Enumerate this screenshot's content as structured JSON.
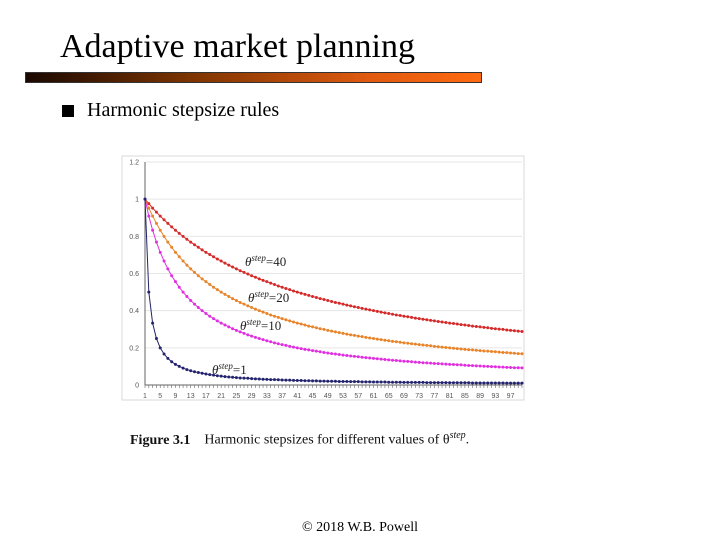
{
  "slide": {
    "title": "Adaptive market planning",
    "bullet": "Harmonic stepsize rules",
    "caption_label": "Figure 3.1",
    "caption_text": "Harmonic stepsizes for different values of θ",
    "caption_sup": "step",
    "caption_end": ".",
    "footer": "© 2018 W.B. Powell",
    "title_bar_colors": [
      "#1a0800",
      "#ff6a10"
    ]
  },
  "chart_data": {
    "type": "line",
    "title": "",
    "xlabel": "",
    "ylabel": "",
    "ylim": [
      0,
      1.2
    ],
    "yticks": [
      "0",
      "0.2",
      "0.4",
      "0.6",
      "0.8",
      "1",
      "1.2"
    ],
    "xlim": [
      1,
      100
    ],
    "xticks": [
      "1",
      "5",
      "9",
      "13",
      "17",
      "21",
      "25",
      "29",
      "33",
      "37",
      "41",
      "45",
      "49",
      "53",
      "57",
      "61",
      "65",
      "69",
      "73",
      "77",
      "81",
      "85",
      "89",
      "93",
      "97"
    ],
    "grid": "horizontal",
    "legend": "none (inline labels)",
    "x": [
      1,
      2,
      3,
      4,
      5,
      6,
      7,
      8,
      9,
      10,
      11,
      12,
      13,
      14,
      15,
      16,
      17,
      18,
      19,
      20,
      21,
      22,
      23,
      24,
      25,
      26,
      27,
      28,
      29,
      30,
      31,
      32,
      33,
      34,
      35,
      36,
      37,
      38,
      39,
      40,
      41,
      42,
      43,
      44,
      45,
      46,
      47,
      48,
      49,
      50,
      51,
      52,
      53,
      54,
      55,
      56,
      57,
      58,
      59,
      60,
      61,
      62,
      63,
      64,
      65,
      66,
      67,
      68,
      69,
      70,
      71,
      72,
      73,
      74,
      75,
      76,
      77,
      78,
      79,
      80,
      81,
      82,
      83,
      84,
      85,
      86,
      87,
      88,
      89,
      90,
      91,
      92,
      93,
      94,
      95,
      96,
      97,
      98,
      99,
      100
    ],
    "series": [
      {
        "name": "θstep=40",
        "label_main": "θ",
        "label_sup": "step",
        "label_val": "=40",
        "color": "#d42a2a",
        "values": [
          1,
          0.976,
          0.952,
          0.93,
          0.909,
          0.889,
          0.87,
          0.851,
          0.833,
          0.816,
          0.8,
          0.784,
          0.769,
          0.755,
          0.741,
          0.727,
          0.714,
          0.702,
          0.69,
          0.678,
          0.667,
          0.656,
          0.645,
          0.635,
          0.625,
          0.615,
          0.606,
          0.597,
          0.588,
          0.58,
          0.571,
          0.563,
          0.556,
          0.548,
          0.541,
          0.533,
          0.526,
          0.519,
          0.513,
          0.506,
          0.5,
          0.494,
          0.488,
          0.482,
          0.476,
          0.471,
          0.465,
          0.46,
          0.455,
          0.449,
          0.444,
          0.44,
          0.435,
          0.43,
          0.426,
          0.421,
          0.417,
          0.412,
          0.408,
          0.404,
          0.4,
          0.396,
          0.392,
          0.388,
          0.385,
          0.381,
          0.377,
          0.374,
          0.37,
          0.367,
          0.364,
          0.36,
          0.357,
          0.354,
          0.351,
          0.348,
          0.345,
          0.342,
          0.339,
          0.336,
          0.333,
          0.331,
          0.328,
          0.325,
          0.323,
          0.32,
          0.317,
          0.315,
          0.313,
          0.31,
          0.308,
          0.305,
          0.303,
          0.301,
          0.299,
          0.296,
          0.294,
          0.292,
          0.29,
          0.288
        ]
      },
      {
        "name": "θstep=20",
        "label_main": "θ",
        "label_sup": "step",
        "label_val": "=20",
        "color": "#e8842a",
        "values": [
          1,
          0.952,
          0.909,
          0.87,
          0.833,
          0.8,
          0.769,
          0.741,
          0.714,
          0.69,
          0.667,
          0.645,
          0.625,
          0.606,
          0.588,
          0.571,
          0.556,
          0.541,
          0.526,
          0.513,
          0.5,
          0.488,
          0.476,
          0.465,
          0.455,
          0.444,
          0.435,
          0.426,
          0.417,
          0.408,
          0.4,
          0.392,
          0.385,
          0.377,
          0.37,
          0.364,
          0.357,
          0.351,
          0.345,
          0.339,
          0.333,
          0.328,
          0.323,
          0.317,
          0.313,
          0.308,
          0.303,
          0.299,
          0.294,
          0.29,
          0.286,
          0.282,
          0.278,
          0.274,
          0.27,
          0.267,
          0.263,
          0.26,
          0.256,
          0.253,
          0.25,
          0.247,
          0.244,
          0.241,
          0.238,
          0.235,
          0.233,
          0.23,
          0.227,
          0.225,
          0.222,
          0.22,
          0.217,
          0.215,
          0.213,
          0.211,
          0.208,
          0.206,
          0.204,
          0.202,
          0.2,
          0.198,
          0.196,
          0.194,
          0.192,
          0.19,
          0.189,
          0.187,
          0.185,
          0.183,
          0.182,
          0.18,
          0.179,
          0.177,
          0.175,
          0.174,
          0.172,
          0.171,
          0.169,
          0.168
        ]
      },
      {
        "name": "θstep=10",
        "label_main": "θ",
        "label_sup": "step",
        "label_val": "=10",
        "color": "#e030e0",
        "values": [
          1,
          0.909,
          0.833,
          0.769,
          0.714,
          0.667,
          0.625,
          0.588,
          0.556,
          0.526,
          0.5,
          0.476,
          0.455,
          0.435,
          0.417,
          0.4,
          0.385,
          0.37,
          0.357,
          0.345,
          0.333,
          0.323,
          0.313,
          0.303,
          0.294,
          0.286,
          0.278,
          0.27,
          0.263,
          0.256,
          0.25,
          0.244,
          0.238,
          0.233,
          0.227,
          0.222,
          0.217,
          0.213,
          0.208,
          0.204,
          0.2,
          0.196,
          0.192,
          0.189,
          0.185,
          0.182,
          0.179,
          0.175,
          0.172,
          0.169,
          0.167,
          0.164,
          0.161,
          0.159,
          0.156,
          0.154,
          0.152,
          0.149,
          0.147,
          0.145,
          0.143,
          0.141,
          0.139,
          0.137,
          0.135,
          0.133,
          0.132,
          0.13,
          0.128,
          0.127,
          0.125,
          0.123,
          0.122,
          0.12,
          0.119,
          0.118,
          0.116,
          0.115,
          0.114,
          0.112,
          0.111,
          0.11,
          0.109,
          0.108,
          0.106,
          0.105,
          0.104,
          0.103,
          0.102,
          0.101,
          0.1,
          0.099,
          0.098,
          0.097,
          0.096,
          0.095,
          0.094,
          0.093,
          0.093,
          0.092
        ]
      },
      {
        "name": "θstep=1",
        "label_main": "θ",
        "label_sup": "step",
        "label_val": "=1",
        "color": "#23236e",
        "values": [
          1,
          0.5,
          0.333,
          0.25,
          0.2,
          0.167,
          0.143,
          0.125,
          0.111,
          0.1,
          0.091,
          0.083,
          0.077,
          0.071,
          0.067,
          0.063,
          0.059,
          0.056,
          0.053,
          0.05,
          0.048,
          0.045,
          0.043,
          0.042,
          0.04,
          0.038,
          0.037,
          0.036,
          0.034,
          0.033,
          0.032,
          0.031,
          0.03,
          0.029,
          0.029,
          0.028,
          0.027,
          0.026,
          0.026,
          0.025,
          0.024,
          0.024,
          0.023,
          0.023,
          0.022,
          0.022,
          0.021,
          0.021,
          0.02,
          0.02,
          0.02,
          0.019,
          0.019,
          0.019,
          0.018,
          0.018,
          0.018,
          0.017,
          0.017,
          0.017,
          0.016,
          0.016,
          0.016,
          0.016,
          0.015,
          0.015,
          0.015,
          0.015,
          0.014,
          0.014,
          0.014,
          0.014,
          0.014,
          0.014,
          0.013,
          0.013,
          0.013,
          0.013,
          0.013,
          0.013,
          0.012,
          0.012,
          0.012,
          0.012,
          0.012,
          0.012,
          0.011,
          0.011,
          0.011,
          0.011,
          0.011,
          0.011,
          0.011,
          0.011,
          0.011,
          0.01,
          0.01,
          0.01,
          0.01,
          0.01
        ]
      }
    ]
  }
}
